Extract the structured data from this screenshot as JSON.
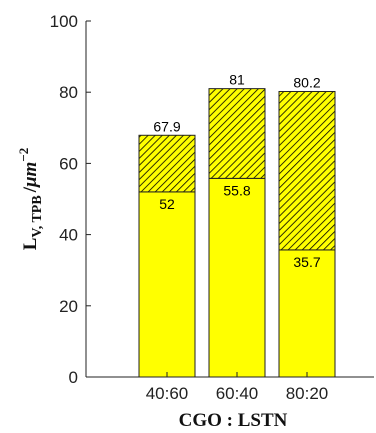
{
  "chart_data": {
    "type": "bar",
    "stacked": true,
    "categories": [
      "40:60",
      "60:40",
      "80:20"
    ],
    "series": [
      {
        "values": [
          52,
          55.8,
          35.7
        ],
        "color": "#ffff00",
        "pattern": "solid"
      },
      {
        "values": [
          15.9,
          25.2,
          44.5
        ],
        "color": "#ffff00",
        "pattern": "hatched"
      }
    ],
    "bottom_labels": [
      "52",
      "55.8",
      "35.7"
    ],
    "total_labels": [
      "67.9",
      "81",
      "80.2"
    ],
    "xlabel": "CGO : LSTN",
    "ylabel": {
      "main": "L",
      "sub": "V, TPB",
      "sep": "/",
      "unit": "μm",
      "exp": "−2"
    },
    "ylim": [
      0,
      100
    ],
    "yticks": [
      "0",
      "20",
      "40",
      "60",
      "80",
      "100"
    ],
    "grid": false,
    "legend": "none"
  }
}
